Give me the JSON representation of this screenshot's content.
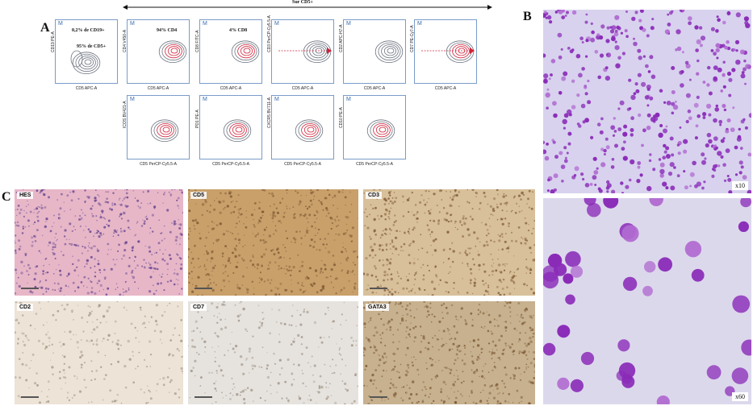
{
  "panel_a": {
    "letter": "A",
    "gate_title": "Sur CD5+",
    "plots": [
      {
        "name": "plot-cd19-cd5",
        "ylab": "CD19 PE-A",
        "xlab": "CD5 APC-A",
        "pct1": "0,2% de CD19+",
        "pct2": "95% de CD5+"
      },
      {
        "name": "plot-cd4",
        "ylab": "CD4 V450-A",
        "xlab": "CD5 APC-A",
        "pct1": "94% CD4"
      },
      {
        "name": "plot-cd8",
        "ylab": "CD8 FITC-A",
        "xlab": "CD5 APC-A",
        "pct1": "4% CD8"
      },
      {
        "name": "plot-cd3",
        "ylab": "CD3 PerCP-Cy5.5-A",
        "xlab": "CD5 APC-A"
      },
      {
        "name": "plot-cd2",
        "ylab": "CD2 APC-H7-A",
        "xlab": "CD5 APC-A"
      },
      {
        "name": "plot-cd7",
        "ylab": "CD7 PE-Cy7-A",
        "xlab": "CD5 APC-A"
      },
      {
        "name": "plot-icos",
        "ylab": "ICOS BV421-A",
        "xlab": "CD5 PerCP-Cy5.5-A"
      },
      {
        "name": "plot-pd1",
        "ylab": "PD1 PE-A",
        "xlab": "CD5 PerCP-Cy5.5-A"
      },
      {
        "name": "plot-cxcr5",
        "ylab": "CXCR5 BV711-A",
        "xlab": "CD5 PerCP-Cy5.5-A"
      },
      {
        "name": "plot-cd10",
        "ylab": "CD10 PE-A",
        "xlab": "CD5 PerCP-Cy5.5-A"
      }
    ],
    "marker_letter": "M"
  },
  "panel_b": {
    "letter": "B",
    "mag_top": "x10",
    "mag_bottom": "x60"
  },
  "panel_c": {
    "letter": "C",
    "tiles": [
      {
        "name": "histo-hes",
        "label": "HES",
        "color": "#e7b7c8"
      },
      {
        "name": "histo-cd5",
        "label": "CD5",
        "color": "#c9a06a"
      },
      {
        "name": "histo-cd3",
        "label": "CD3",
        "color": "#d8c09a"
      },
      {
        "name": "histo-cd2",
        "label": "CD2",
        "color": "#ede3d6"
      },
      {
        "name": "histo-cd7",
        "label": "CD7",
        "color": "#e6e3df"
      },
      {
        "name": "histo-gata3",
        "label": "GATA3",
        "color": "#c7b18f"
      }
    ]
  },
  "colors": {
    "plot_border": "#7a9cc8",
    "contour_grey": "#6d7380",
    "contour_red": "#d2233b",
    "stain_purple": "#8a2bb8"
  }
}
